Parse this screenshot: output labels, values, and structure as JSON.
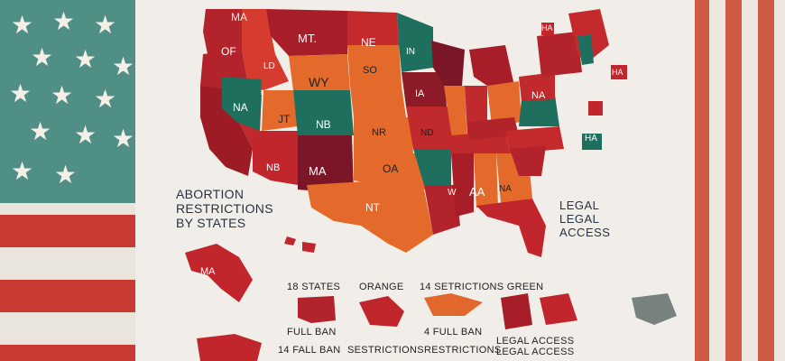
{
  "title_lines": [
    "ABORTION",
    "RESTRICTIONS",
    "BY STATES"
  ],
  "legal_lines": [
    "LEGAL",
    "LEGAL",
    "ACCESS"
  ],
  "state_labels": [
    "MA",
    "OF",
    "LD",
    "MT.",
    "NE",
    "IN",
    "WY",
    "SO",
    "NA",
    "JT",
    "NB",
    "IA",
    "NR",
    "ND",
    "NB",
    "MA",
    "OA",
    "NT",
    "AA",
    "W",
    "NA",
    "NA",
    "HA",
    "MA",
    "HA",
    "HA"
  ],
  "legend": {
    "col1_head": "18 STATES",
    "col1_a": "FULL BAN",
    "col1_b": "14 FALL BAN",
    "col2_head": "ORANGE",
    "col2_b": "SESTRICTIONS",
    "col3_head": "14 SETRICTIONS GREEN",
    "col3_a": "4 FULL BAN",
    "col3_b": "RESTRICTIONS",
    "col4_a": "LEGAL ACCESS",
    "col4_b": "LEGAL ACCESS"
  },
  "colors": {
    "full_ban": "#b2232b",
    "restrictions": "#e2672d",
    "legal_access": "#1f6f5f",
    "dark_ban": "#7a1626",
    "legal_other": "#78827e"
  }
}
